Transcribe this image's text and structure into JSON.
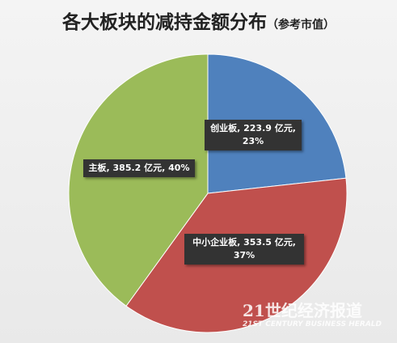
{
  "chart_data": {
    "type": "pie",
    "title": "各大板块的减持金额分布",
    "subtitle": "（参考市值）",
    "categories": [
      "创业板",
      "中小企业板",
      "主板"
    ],
    "values": [
      223.9,
      353.5,
      385.2
    ],
    "value_labels": [
      "创业板, 223.9 亿元, 23%",
      "中小企业板, 353.5 亿元, 37%",
      "主板, 385.2 亿元, 40%"
    ],
    "colors": [
      "#4f81bd",
      "#c0504d",
      "#9bbb59"
    ]
  },
  "watermark": {
    "title": "21世纪经济报道",
    "subtitle": "21ST CENTURY BUSINESS HERALD"
  }
}
